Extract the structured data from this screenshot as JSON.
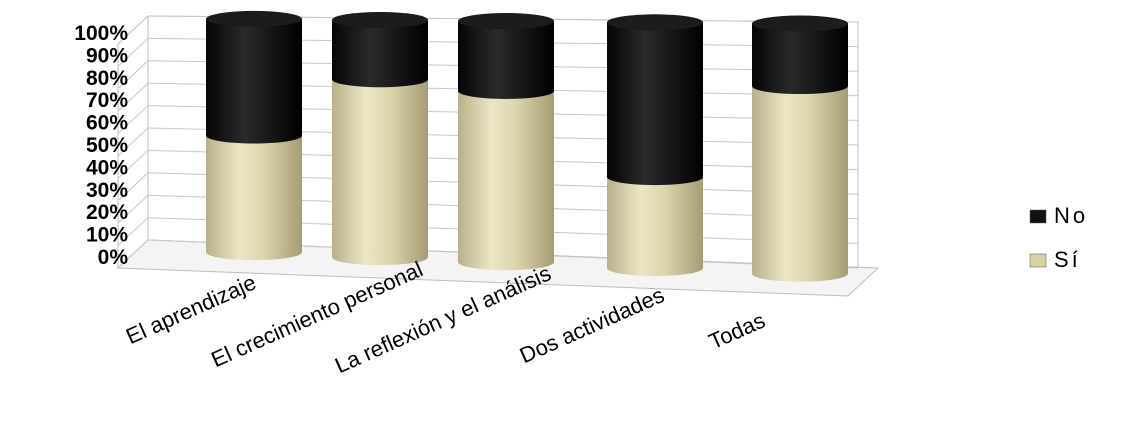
{
  "chart_data": {
    "type": "bar",
    "stacked": true,
    "percent": true,
    "three_d": true,
    "title": "",
    "xlabel": "",
    "ylabel": "",
    "categories": [
      "El aprendizaje",
      "El crecimiento personal",
      "La reflexión y el análisis",
      "Dos actividades",
      "Todas"
    ],
    "series": [
      {
        "name": "Sí",
        "values": [
          50,
          75,
          71,
          37,
          75
        ],
        "color": "#d9d2a8"
      },
      {
        "name": "No",
        "values": [
          50,
          25,
          29,
          63,
          25
        ],
        "color": "#111111"
      }
    ],
    "yticks": [
      "0%",
      "10%",
      "20%",
      "30%",
      "40%",
      "50%",
      "60%",
      "70%",
      "80%",
      "90%",
      "100%"
    ],
    "ylim": [
      0,
      100
    ],
    "grid": true,
    "legend_position": "right",
    "legend": [
      {
        "label": "No",
        "color": "#111111"
      },
      {
        "label": "Sí",
        "color": "#d9d2a8"
      }
    ]
  }
}
